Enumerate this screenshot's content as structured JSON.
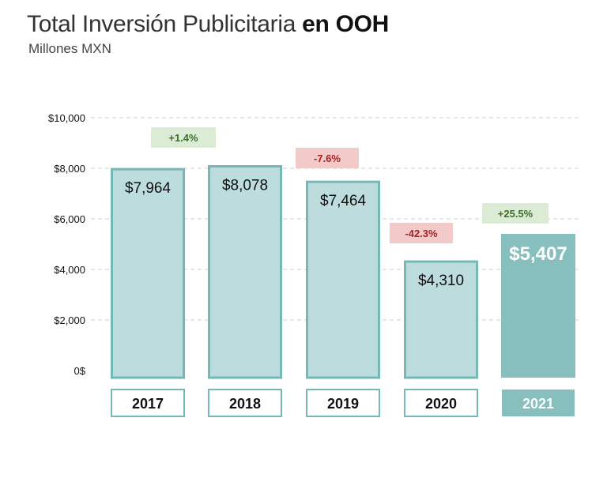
{
  "title_main": "Total Inversión Publicitaria ",
  "title_bold": "en OOH",
  "subtitle": "Millones MXN",
  "colors": {
    "bar_fill": "#bddcdd",
    "bar_stroke": "#76b8b6",
    "highlight_fill": "#86bfbe",
    "positive_bg": "#dcebd5",
    "positive_text": "#3d6e2c",
    "negative_bg": "#f2caca",
    "negative_text": "#a82222",
    "grid": "#cccccc"
  },
  "chart_data": {
    "type": "bar",
    "title": "Total Inversión Publicitaria en OOH",
    "subtitle": "Millones MXN",
    "categories": [
      "2017",
      "2018",
      "2019",
      "2020",
      "2021"
    ],
    "values": [
      7964,
      8078,
      7464,
      4310,
      5407
    ],
    "value_labels": [
      "$7,964",
      "$8,078",
      "$7,464",
      "$4,310",
      "$5,407"
    ],
    "changes": [
      "+1.4%",
      "-7.6%",
      "-42.3%",
      "+25.5%"
    ],
    "highlight": "2021",
    "ylim": [
      0,
      10000
    ],
    "yticks": [
      0,
      2000,
      4000,
      6000,
      8000,
      10000
    ],
    "ytick_labels": [
      "0$",
      "$2,000",
      "$4,000",
      "$6,000",
      "$8,000",
      "$10,000"
    ],
    "grid": true,
    "xlabel": "",
    "ylabel": ""
  }
}
